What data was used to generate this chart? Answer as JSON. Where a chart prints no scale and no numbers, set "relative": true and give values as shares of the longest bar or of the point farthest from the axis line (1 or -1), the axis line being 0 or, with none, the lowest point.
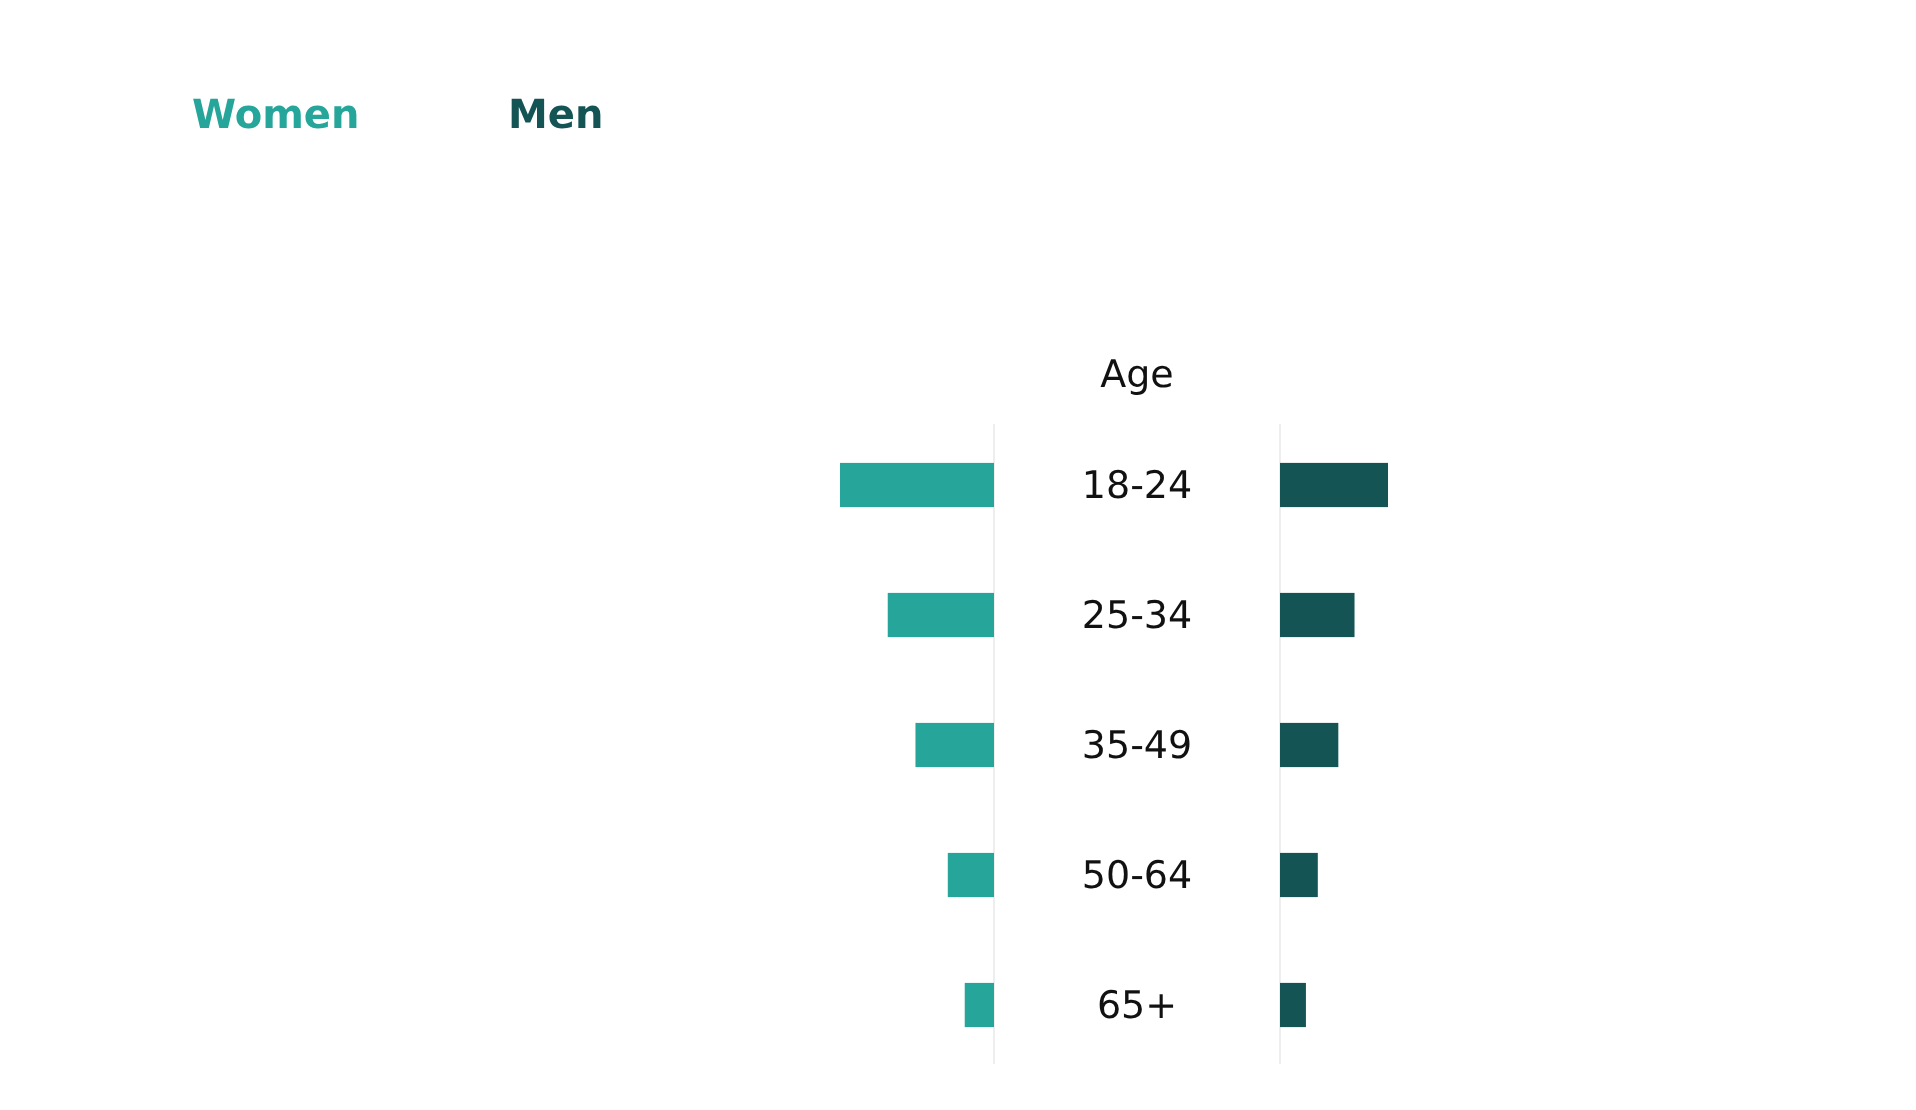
{
  "chart_data": [
    {
      "type": "bar",
      "orientation": "horizontal",
      "relative": true,
      "ylabel": "Age",
      "categories": [
        "18-24",
        "25-34",
        "35-49",
        "50-64",
        "65+"
      ],
      "series": [
        {
          "name": "Women",
          "color": "#26a69a",
          "values": [
            -1,
            -0.69,
            -0.51,
            -0.3,
            -0.19
          ]
        }
      ],
      "grid": false
    },
    {
      "type": "bar",
      "orientation": "horizontal",
      "relative": true,
      "categories": [
        null,
        null,
        null,
        null,
        null
      ],
      "series": [
        {
          "name": "Men",
          "color": "#145454",
          "values": [
            1,
            0.69,
            0.54,
            0.35,
            0.24
          ]
        }
      ],
      "grid": false
    }
  ]
}
